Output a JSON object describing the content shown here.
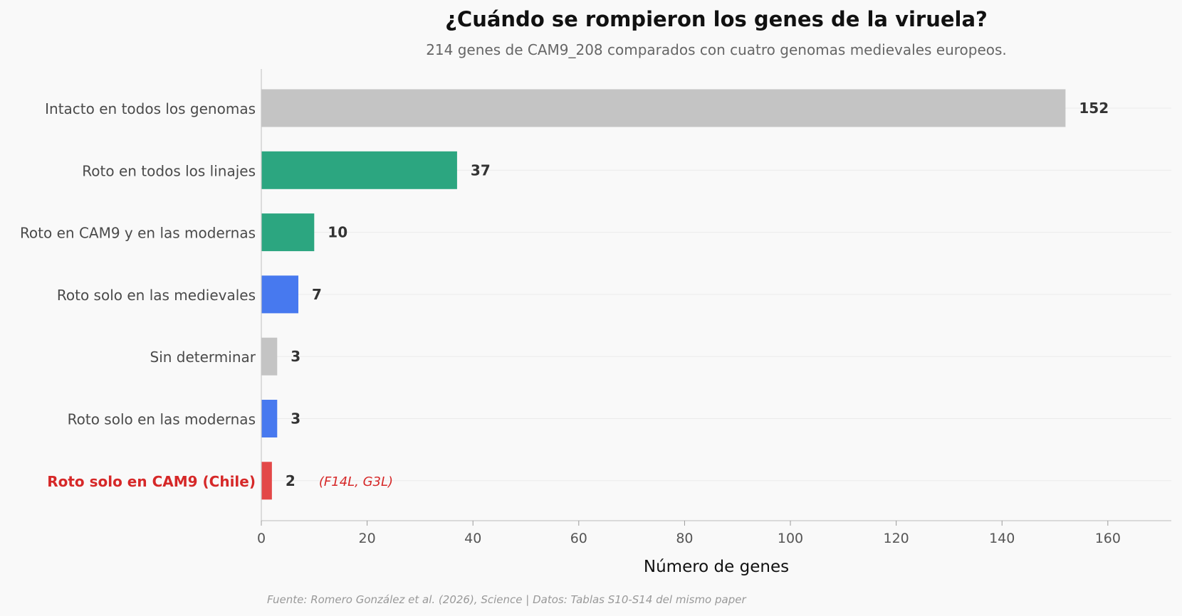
{
  "chart_data": {
    "type": "bar",
    "orientation": "horizontal",
    "title": "¿Cuándo se rompieron los genes de la viruela?",
    "subtitle": "214 genes de CAM9_208 comparados con cuatro genomas medievales europeos.",
    "xlabel": "Número de genes",
    "ylabel": "",
    "xlim": [
      0,
      172
    ],
    "xticks": [
      0,
      20,
      40,
      60,
      80,
      100,
      120,
      140,
      160
    ],
    "grid": "horizontal",
    "categories": [
      "Intacto en todos los genomas",
      "Roto en todos los linajes",
      "Roto en CAM9 y en las modernas",
      "Roto solo en las medievales",
      "Sin determinar",
      "Roto solo en las modernas",
      "Roto solo en CAM9 (Chile)"
    ],
    "values": [
      152,
      37,
      10,
      7,
      3,
      3,
      2
    ],
    "colors": [
      "#c4c4c4",
      "#2ca680",
      "#2ca680",
      "#4779ef",
      "#c4c4c4",
      "#4779ef",
      "#e34848"
    ],
    "highlight_index": 6,
    "highlight_label_color": "#d62828",
    "annotations": [
      {
        "category_index": 6,
        "text": "(F14L, G3L)",
        "color": "#d62828"
      }
    ],
    "source": "Fuente: Romero González et al. (2026), Science | Datos: Tablas S10-S14 del mismo paper"
  }
}
